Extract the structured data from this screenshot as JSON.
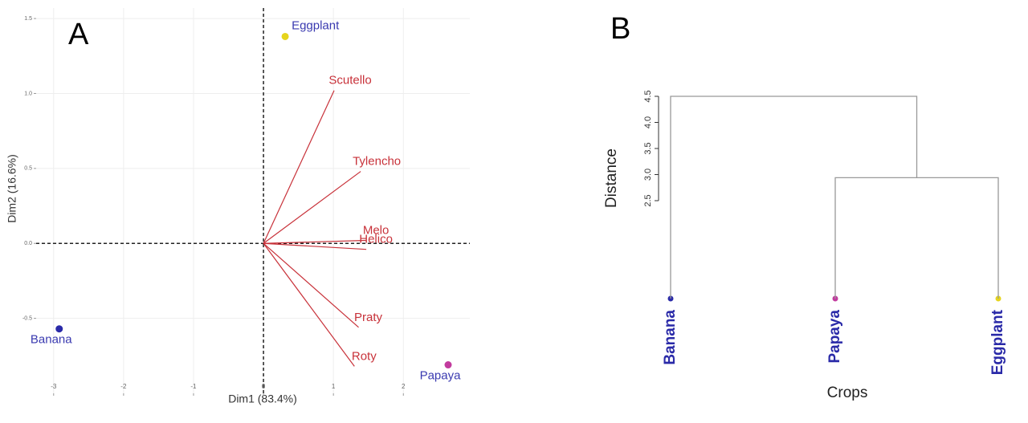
{
  "chart_data": [
    {
      "type": "biplot",
      "panel_label": "A",
      "xlabel": "Dim1 (83.4%)",
      "ylabel": "Dim2 (16.6%)",
      "xlim": [
        -3.25,
        2.95
      ],
      "ylim": [
        -1.0,
        1.57
      ],
      "xticks": [
        -3,
        -2,
        -1,
        0,
        1,
        2
      ],
      "yticks": [
        {
          "value": 1.5,
          "label": "1.5"
        },
        {
          "value": 1,
          "label": "1.0"
        },
        {
          "value": 0.5,
          "label": "0.5"
        },
        {
          "value": 0,
          "label": "0.0"
        },
        {
          "value": -0.5,
          "label": "-0.5"
        }
      ],
      "grid": true,
      "individuals": {
        "names": [
          "Eggplant",
          "Banana",
          "Papaya"
        ],
        "colors": [
          "#e6d41c",
          "#2a2aa8",
          "#c23b9e"
        ],
        "label_color": "#3a3ab0",
        "x": [
          0.31,
          -2.92,
          2.64
        ],
        "y": [
          1.38,
          -0.57,
          -0.81
        ]
      },
      "variables": {
        "names": [
          "Scutello",
          "Tylencho",
          "Melo",
          "Helico",
          "Praty",
          "Roty"
        ],
        "color": "#c8323a",
        "x": [
          1.01,
          1.39,
          1.47,
          1.47,
          1.36,
          1.3
        ],
        "y": [
          1.02,
          0.48,
          0.02,
          -0.04,
          -0.56,
          -0.82
        ]
      }
    },
    {
      "type": "dendrogram",
      "panel_label": "B",
      "xlabel": "Crops",
      "ylabel": "Distance",
      "ylim": [
        2.5,
        4.5
      ],
      "yticks": [
        {
          "value": 2.5,
          "label": "2.5"
        },
        {
          "value": 3,
          "label": "3.0"
        },
        {
          "value": 3.5,
          "label": "3.5"
        },
        {
          "value": 4,
          "label": "4.0"
        },
        {
          "value": 4.5,
          "label": "4.5"
        }
      ],
      "leaves": [
        "Banana",
        "Papaya",
        "Eggplant"
      ],
      "leaf_colors": [
        "#2a2aa8",
        "#c23b9e",
        "#e6d41c"
      ],
      "label_color": "#2a2aa8",
      "heights": [
        2.94,
        4.5
      ]
    }
  ]
}
